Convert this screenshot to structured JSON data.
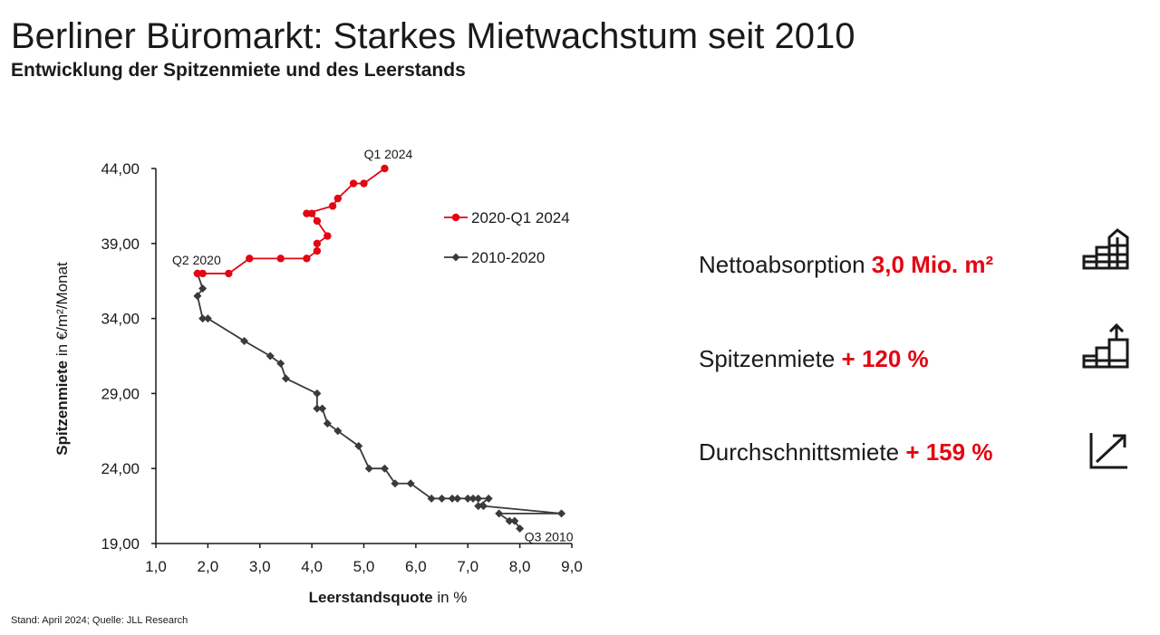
{
  "header": {
    "title": "Berliner Büromarkt: Starkes Mietwachstum seit 2010",
    "subtitle": "Entwicklung der Spitzenmiete und des Leerstands"
  },
  "footer": {
    "source": "Stand: April 2024; Quelle: JLL Research"
  },
  "chart_data": {
    "type": "line",
    "xlabel_bold": "Leerstandsquote",
    "xlabel_rest": " in %",
    "ylabel_bold": "Spitzenmiete",
    "ylabel_rest": " in €/m²/Monat",
    "xlim": [
      1.0,
      9.0
    ],
    "ylim": [
      19.0,
      44.0
    ],
    "x_ticks": [
      "1,0",
      "2,0",
      "3,0",
      "4,0",
      "5,0",
      "6,0",
      "7,0",
      "8,0",
      "9,0"
    ],
    "y_ticks": [
      "19,00",
      "24,00",
      "29,00",
      "34,00",
      "39,00",
      "44,00"
    ],
    "legend_placement": "right",
    "annotations": [
      {
        "text": "Q1 2024",
        "x": 5.4,
        "y": 44.0
      },
      {
        "text": "Q2 2020",
        "x": 1.8,
        "y": 37.0
      },
      {
        "text": "Q3 2010",
        "x": 8.0,
        "y": 20.0
      }
    ],
    "series": [
      {
        "name": "2010-2020",
        "color": "#3a3a3a",
        "marker": "diamond",
        "points": [
          [
            8.0,
            20.0
          ],
          [
            7.9,
            20.5
          ],
          [
            7.8,
            20.5
          ],
          [
            7.6,
            21.0
          ],
          [
            8.8,
            21.0
          ],
          [
            7.3,
            21.5
          ],
          [
            7.2,
            21.5
          ],
          [
            7.4,
            22.0
          ],
          [
            7.2,
            22.0
          ],
          [
            7.1,
            22.0
          ],
          [
            7.0,
            22.0
          ],
          [
            6.8,
            22.0
          ],
          [
            6.7,
            22.0
          ],
          [
            6.5,
            22.0
          ],
          [
            6.3,
            22.0
          ],
          [
            5.9,
            23.0
          ],
          [
            5.6,
            23.0
          ],
          [
            5.4,
            24.0
          ],
          [
            5.1,
            24.0
          ],
          [
            4.9,
            25.5
          ],
          [
            4.5,
            26.5
          ],
          [
            4.3,
            27.0
          ],
          [
            4.2,
            28.0
          ],
          [
            4.1,
            28.0
          ],
          [
            4.1,
            29.0
          ],
          [
            3.5,
            30.0
          ],
          [
            3.4,
            31.0
          ],
          [
            3.2,
            31.5
          ],
          [
            2.7,
            32.5
          ],
          [
            2.0,
            34.0
          ],
          [
            1.9,
            34.0
          ],
          [
            1.8,
            35.5
          ],
          [
            1.9,
            36.0
          ],
          [
            1.8,
            37.0
          ]
        ]
      },
      {
        "name": "2020-Q1 2024",
        "color": "#e30613",
        "marker": "circle",
        "points": [
          [
            1.8,
            37.0
          ],
          [
            1.9,
            37.0
          ],
          [
            2.4,
            37.0
          ],
          [
            2.8,
            38.0
          ],
          [
            3.4,
            38.0
          ],
          [
            3.9,
            38.0
          ],
          [
            4.1,
            38.5
          ],
          [
            4.1,
            39.0
          ],
          [
            4.3,
            39.5
          ],
          [
            4.1,
            40.5
          ],
          [
            4.0,
            41.0
          ],
          [
            3.9,
            41.0
          ],
          [
            4.4,
            41.5
          ],
          [
            4.5,
            42.0
          ],
          [
            4.8,
            43.0
          ],
          [
            5.0,
            43.0
          ],
          [
            5.4,
            44.0
          ]
        ]
      }
    ]
  },
  "kpis": [
    {
      "label": "Nettoabsorption ",
      "value": "3,0 Mio. m²",
      "icon": "building-icon"
    },
    {
      "label": "Spitzenmiete ",
      "value": "+ 120 %",
      "icon": "stairs-up-arrow-icon"
    },
    {
      "label": "Durchschnittsmiete ",
      "value": "+ 159 %",
      "icon": "trend-arrow-icon"
    }
  ]
}
